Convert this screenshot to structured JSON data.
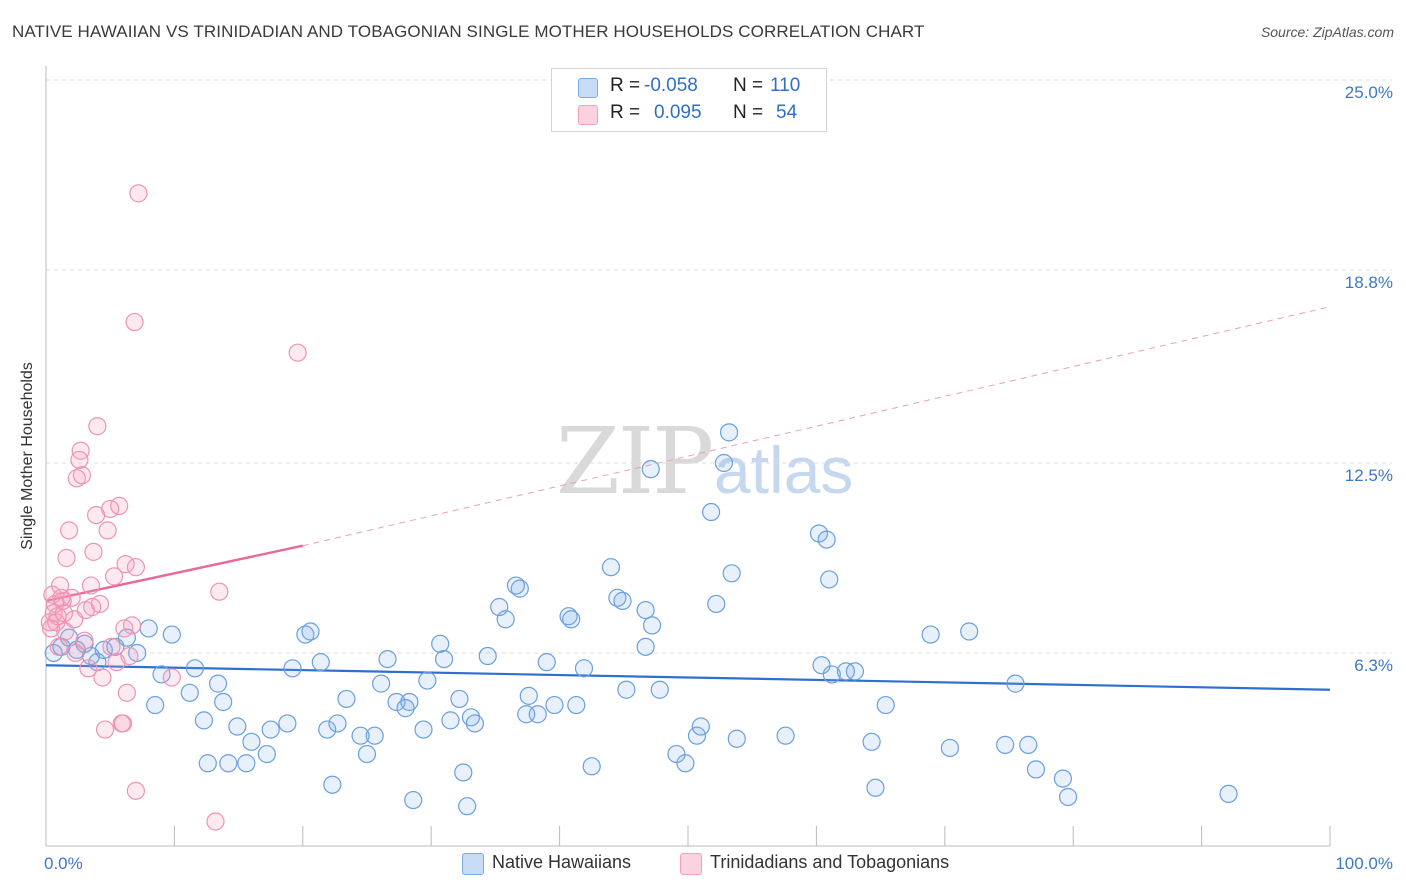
{
  "title": "NATIVE HAWAIIAN VS TRINIDADIAN AND TOBAGONIAN SINGLE MOTHER HOUSEHOLDS CORRELATION CHART",
  "source": "Source: ZipAtlas.com",
  "watermark": {
    "zip": "ZIP",
    "atlas": "atlas"
  },
  "stats": [
    {
      "r_label": "R =",
      "r_value": "-0.058",
      "n_label": "N =",
      "n_value": "110",
      "color": "#7aaae8"
    },
    {
      "r_label": "R =",
      "r_value": "0.095",
      "n_label": "N =",
      "n_value": "54",
      "color": "#f4a0bc"
    }
  ],
  "legend": [
    {
      "label": "Native Hawaiians",
      "color": "#7aaae8"
    },
    {
      "label": "Trinidadians and Tobagonians",
      "color": "#f4a0bc"
    }
  ],
  "chart_data": {
    "type": "scatter",
    "ylabel": "Single Mother Households",
    "xlabel": "",
    "xlim": [
      0,
      100
    ],
    "ylim": [
      0,
      25
    ],
    "x_tick_labels": [
      "0.0%",
      "100.0%"
    ],
    "y_ticks": [
      6.3,
      12.5,
      18.8,
      25.0
    ],
    "y_tick_labels": [
      "6.3%",
      "12.5%",
      "18.8%",
      "25.0%"
    ],
    "grid": "horizontal dashed",
    "legend_position": "bottom-center",
    "series": [
      {
        "name": "Native Hawaiians",
        "color": "#5b93dc",
        "trend": {
          "x0": 0,
          "y0": 5.9,
          "x1": 100,
          "y1": 5.1
        },
        "points": [
          [
            0.6,
            6.3
          ],
          [
            1.2,
            6.5
          ],
          [
            1.8,
            6.8
          ],
          [
            2.4,
            6.4
          ],
          [
            3.0,
            6.6
          ],
          [
            3.5,
            6.2
          ],
          [
            4.0,
            6.0
          ],
          [
            4.5,
            6.4
          ],
          [
            5.4,
            6.5
          ],
          [
            6.3,
            6.8
          ],
          [
            7.1,
            6.3
          ],
          [
            8.0,
            7.1
          ],
          [
            9.0,
            5.6
          ],
          [
            9.8,
            6.9
          ],
          [
            11.2,
            5.0
          ],
          [
            11.6,
            5.8
          ],
          [
            8.5,
            4.6
          ],
          [
            12.3,
            4.1
          ],
          [
            13.4,
            5.3
          ],
          [
            13.8,
            4.7
          ],
          [
            14.9,
            3.9
          ],
          [
            16.0,
            3.4
          ],
          [
            12.6,
            2.7
          ],
          [
            14.2,
            2.7
          ],
          [
            15.6,
            2.7
          ],
          [
            17.2,
            3.0
          ],
          [
            17.5,
            3.8
          ],
          [
            18.8,
            4.0
          ],
          [
            19.2,
            5.8
          ],
          [
            20.2,
            6.9
          ],
          [
            20.6,
            7.0
          ],
          [
            21.4,
            6.0
          ],
          [
            21.9,
            3.8
          ],
          [
            22.3,
            2.0
          ],
          [
            22.7,
            4.0
          ],
          [
            23.4,
            4.8
          ],
          [
            24.5,
            3.6
          ],
          [
            25.0,
            3.0
          ],
          [
            25.6,
            3.6
          ],
          [
            26.1,
            5.3
          ],
          [
            26.6,
            6.1
          ],
          [
            27.3,
            4.7
          ],
          [
            28.3,
            4.7
          ],
          [
            28.6,
            1.5
          ],
          [
            29.4,
            3.8
          ],
          [
            29.7,
            5.4
          ],
          [
            28.0,
            4.5
          ],
          [
            30.7,
            6.6
          ],
          [
            31.0,
            6.1
          ],
          [
            31.5,
            4.1
          ],
          [
            32.2,
            4.8
          ],
          [
            32.5,
            2.4
          ],
          [
            32.8,
            1.3
          ],
          [
            33.1,
            4.2
          ],
          [
            33.4,
            4.0
          ],
          [
            34.4,
            6.2
          ],
          [
            35.3,
            7.8
          ],
          [
            35.8,
            7.4
          ],
          [
            36.9,
            8.4
          ],
          [
            36.6,
            8.5
          ],
          [
            37.6,
            4.9
          ],
          [
            37.4,
            4.3
          ],
          [
            38.3,
            4.3
          ],
          [
            39.0,
            6.0
          ],
          [
            39.6,
            4.6
          ],
          [
            40.7,
            7.5
          ],
          [
            40.9,
            7.4
          ],
          [
            41.3,
            4.6
          ],
          [
            41.9,
            5.8
          ],
          [
            42.5,
            2.6
          ],
          [
            44.0,
            9.1
          ],
          [
            44.5,
            8.1
          ],
          [
            44.9,
            8.0
          ],
          [
            46.7,
            6.5
          ],
          [
            45.2,
            5.1
          ],
          [
            47.1,
            12.3
          ],
          [
            46.7,
            7.7
          ],
          [
            47.2,
            7.2
          ],
          [
            47.8,
            5.1
          ],
          [
            49.1,
            3.0
          ],
          [
            49.8,
            2.7
          ],
          [
            50.7,
            3.6
          ],
          [
            51.0,
            3.9
          ],
          [
            52.2,
            7.9
          ],
          [
            51.8,
            10.9
          ],
          [
            52.8,
            12.5
          ],
          [
            53.2,
            13.5
          ],
          [
            53.8,
            3.5
          ],
          [
            53.4,
            8.9
          ],
          [
            57.6,
            3.6
          ],
          [
            60.2,
            10.2
          ],
          [
            60.8,
            10.0
          ],
          [
            61.0,
            8.7
          ],
          [
            62.3,
            5.7
          ],
          [
            63.0,
            5.7
          ],
          [
            64.3,
            3.4
          ],
          [
            64.6,
            1.9
          ],
          [
            65.4,
            4.6
          ],
          [
            68.9,
            6.9
          ],
          [
            70.4,
            3.2
          ],
          [
            71.9,
            7.0
          ],
          [
            74.7,
            3.3
          ],
          [
            76.5,
            3.3
          ],
          [
            77.1,
            2.5
          ],
          [
            79.2,
            2.2
          ],
          [
            79.6,
            1.6
          ],
          [
            92.1,
            1.7
          ],
          [
            75.5,
            5.3
          ],
          [
            61.2,
            5.6
          ],
          [
            60.4,
            5.9
          ]
        ]
      },
      {
        "name": "Trinidadians and Tobagonians",
        "color": "#f08db0",
        "trend": {
          "x0": 0,
          "y0": 8.0,
          "x1": 20,
          "y1": 9.8,
          "dashed_to": {
            "x": 100,
            "y": 17.6
          }
        },
        "points": [
          [
            0.3,
            7.3
          ],
          [
            0.5,
            8.2
          ],
          [
            0.7,
            7.9
          ],
          [
            0.9,
            7.5
          ],
          [
            1.1,
            8.5
          ],
          [
            1.3,
            8.0
          ],
          [
            1.5,
            7.0
          ],
          [
            1.6,
            9.4
          ],
          [
            1.8,
            10.3
          ],
          [
            2.0,
            8.1
          ],
          [
            2.2,
            7.4
          ],
          [
            2.4,
            12.0
          ],
          [
            2.6,
            12.6
          ],
          [
            2.7,
            12.9
          ],
          [
            2.8,
            12.1
          ],
          [
            3.0,
            6.7
          ],
          [
            3.1,
            7.7
          ],
          [
            3.3,
            5.8
          ],
          [
            3.5,
            8.5
          ],
          [
            3.7,
            9.6
          ],
          [
            3.9,
            10.8
          ],
          [
            4.0,
            13.7
          ],
          [
            4.2,
            7.9
          ],
          [
            4.4,
            5.5
          ],
          [
            4.6,
            3.8
          ],
          [
            4.8,
            10.3
          ],
          [
            5.0,
            11.0
          ],
          [
            5.1,
            6.5
          ],
          [
            5.3,
            8.8
          ],
          [
            5.5,
            6.0
          ],
          [
            5.7,
            11.1
          ],
          [
            5.9,
            4.0
          ],
          [
            6.0,
            4.0
          ],
          [
            6.1,
            7.1
          ],
          [
            6.2,
            9.2
          ],
          [
            6.3,
            5.0
          ],
          [
            6.5,
            6.2
          ],
          [
            6.7,
            7.2
          ],
          [
            7.0,
            1.8
          ],
          [
            7.0,
            9.1
          ],
          [
            7.2,
            21.3
          ],
          [
            6.9,
            17.1
          ],
          [
            0.4,
            7.1
          ],
          [
            0.6,
            7.6
          ],
          [
            0.8,
            7.3
          ],
          [
            1.0,
            6.5
          ],
          [
            1.2,
            8.1
          ],
          [
            1.4,
            7.6
          ],
          [
            9.8,
            5.5
          ],
          [
            13.5,
            8.3
          ],
          [
            13.2,
            0.8
          ],
          [
            19.6,
            16.1
          ],
          [
            2.3,
            6.3
          ],
          [
            3.6,
            7.8
          ]
        ]
      }
    ]
  }
}
